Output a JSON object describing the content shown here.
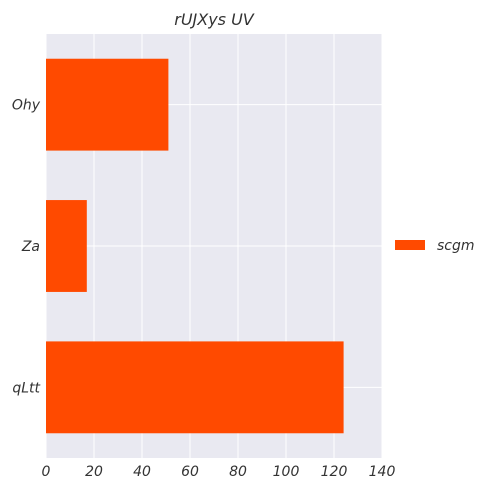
{
  "chart_data": {
    "type": "bar",
    "orientation": "horizontal",
    "title": "rUJXys UV",
    "xlabel": "",
    "ylabel": "",
    "categories": [
      "Ohy",
      "Za",
      "qLtt"
    ],
    "series": [
      {
        "name": "scgm",
        "values": [
          51,
          17,
          124
        ],
        "color": "#FF4A00"
      }
    ],
    "xlim": [
      0,
      140
    ],
    "xticks": [
      "0",
      "20",
      "40",
      "60",
      "80",
      "100",
      "120",
      "140"
    ],
    "grid": true,
    "legend_position": "right",
    "background": "#E9E9F1"
  }
}
